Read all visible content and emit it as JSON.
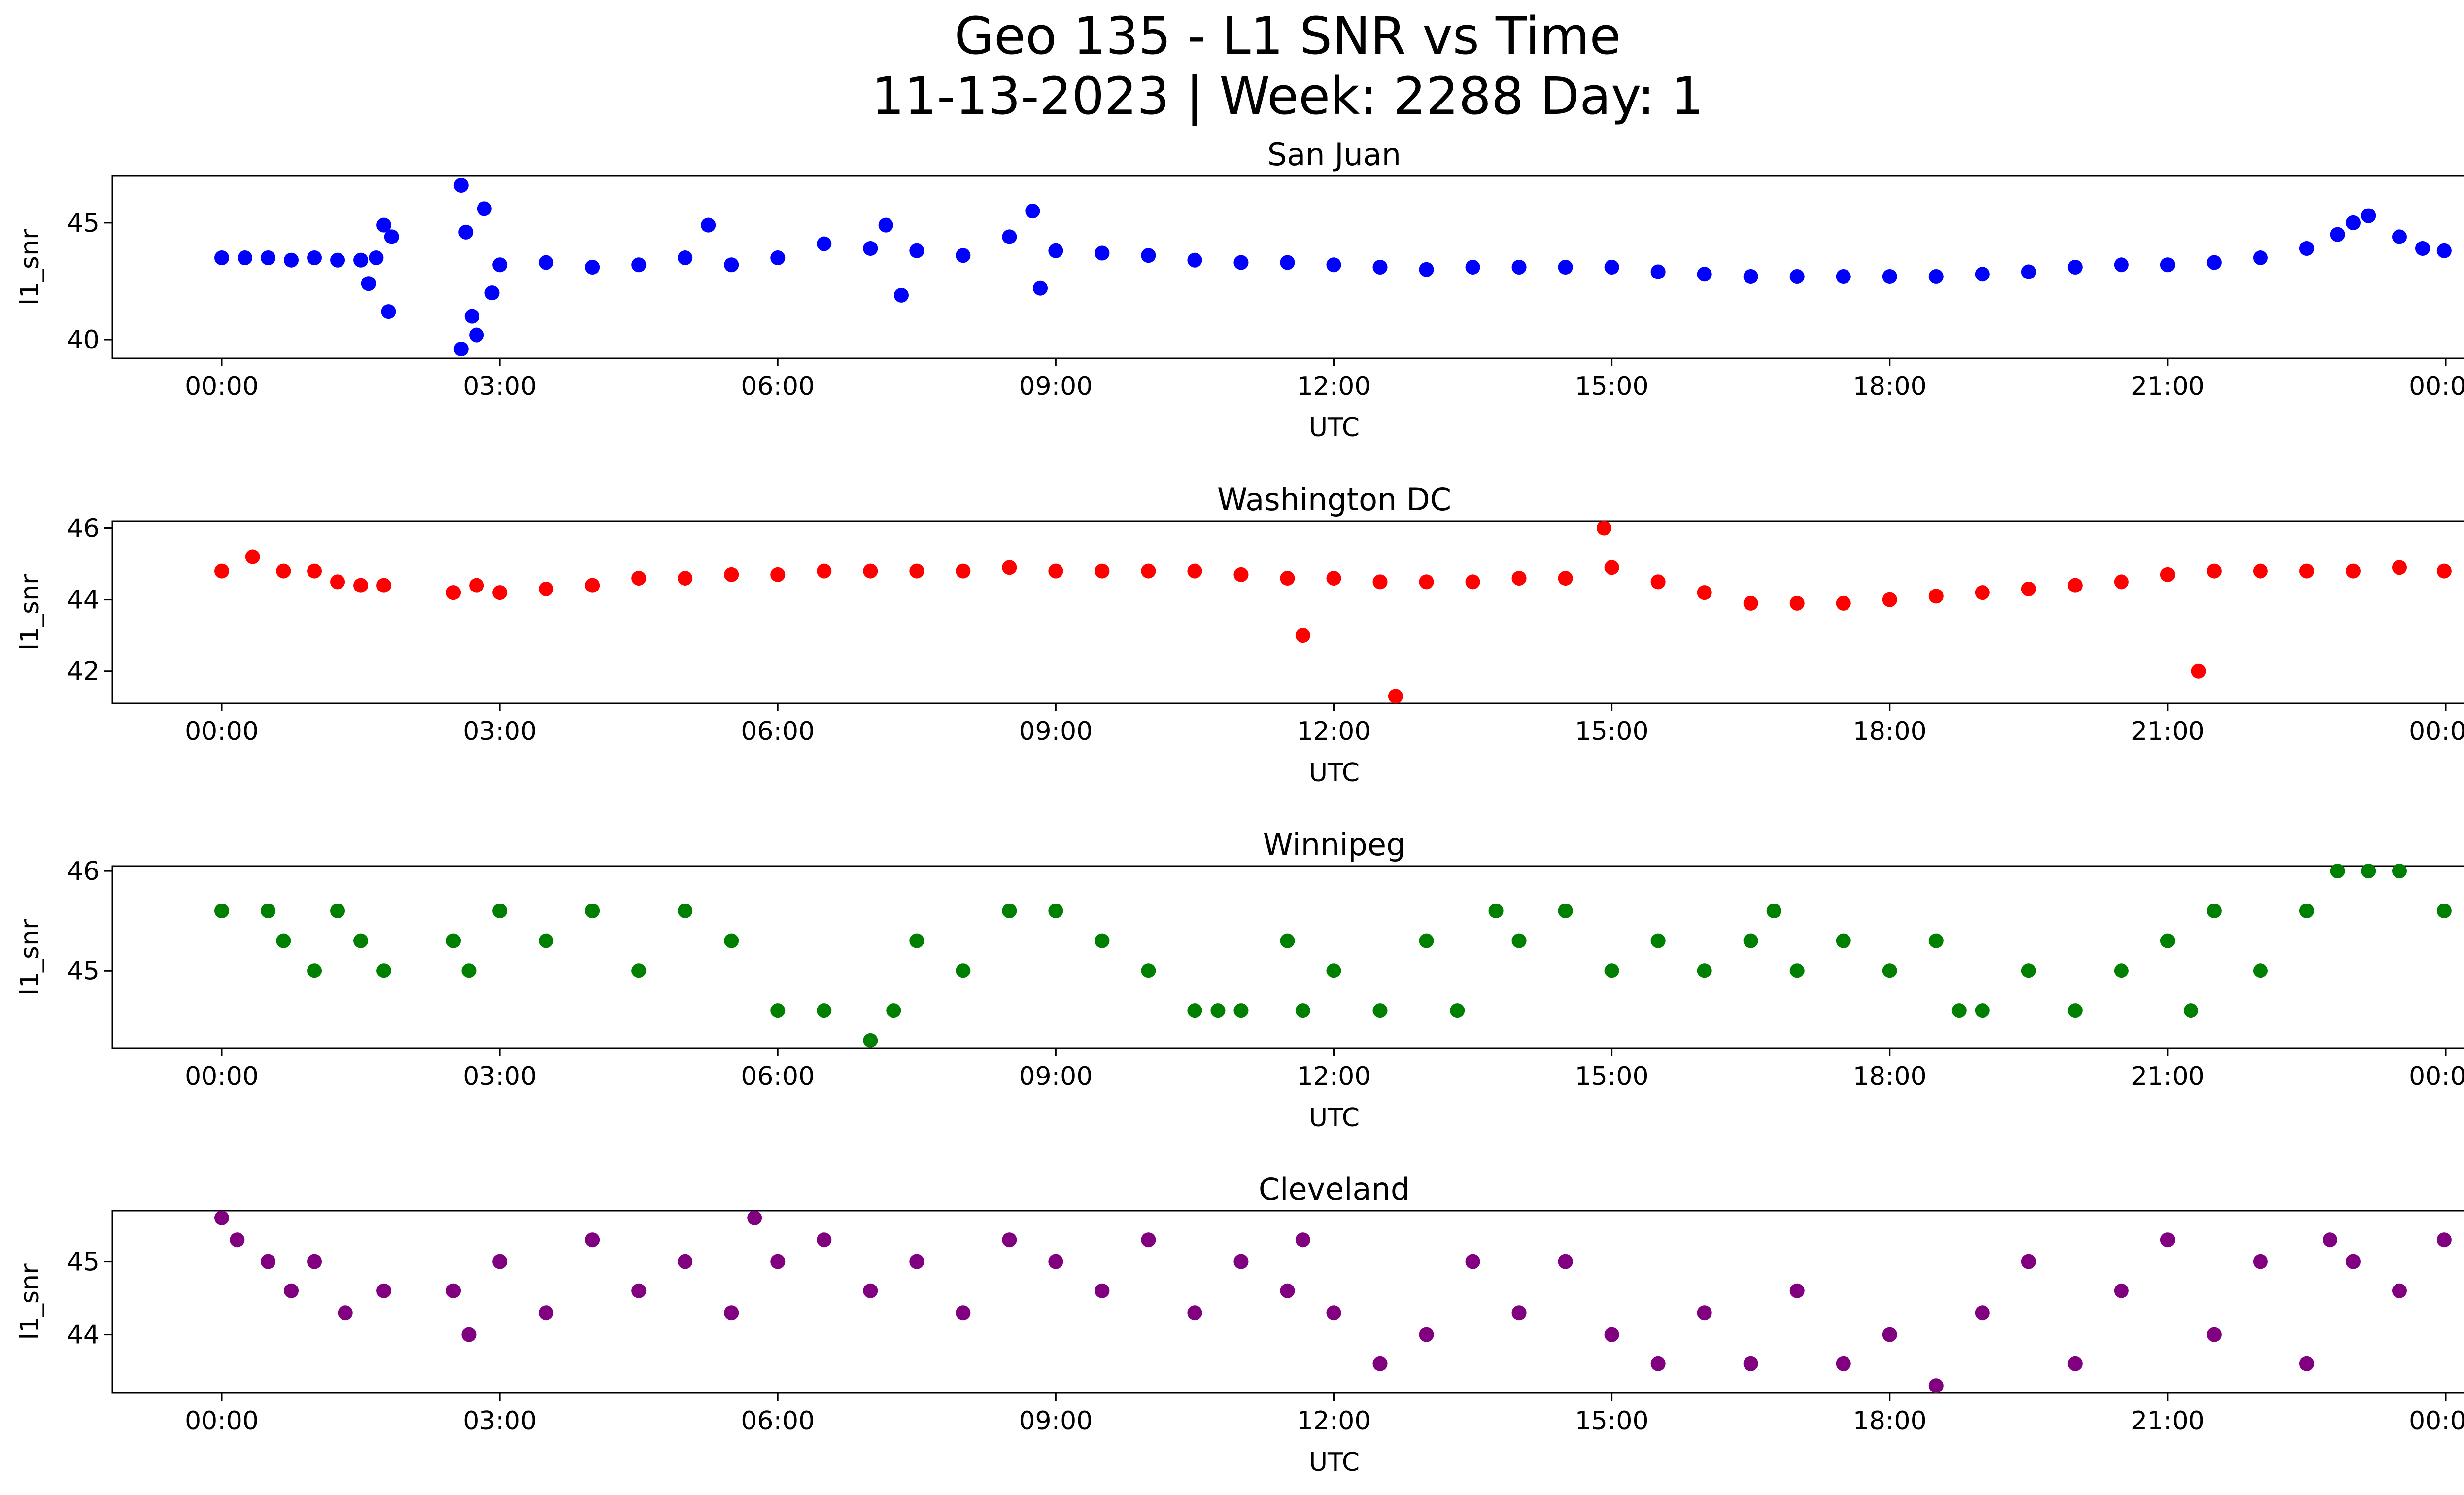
{
  "title": {
    "line1": "Geo 135 - L1 SNR vs Time",
    "line2": "11-13-2023 | Week: 2288 Day: 1"
  },
  "chart_data": [
    {
      "type": "scatter",
      "title": "San Juan",
      "xlabel": "UTC",
      "ylabel": "l1_snr",
      "color": "#0000ff",
      "xlim": [
        "2023-11-13T00:00",
        "2023-11-14T00:00"
      ],
      "ylim": [
        39.2,
        47.0
      ],
      "yticks": [
        40,
        45
      ],
      "xtick_labels": [
        "00:00",
        "03:00",
        "06:00",
        "09:00",
        "12:00",
        "15:00",
        "18:00",
        "21:00",
        "00:00"
      ],
      "points": [
        [
          "00:00",
          43.5
        ],
        [
          "00:15",
          43.5
        ],
        [
          "00:30",
          43.5
        ],
        [
          "00:45",
          43.4
        ],
        [
          "01:00",
          43.5
        ],
        [
          "01:15",
          43.4
        ],
        [
          "01:30",
          43.4
        ],
        [
          "01:40",
          43.5
        ],
        [
          "01:45",
          44.9
        ],
        [
          "01:48",
          41.2
        ],
        [
          "01:50",
          44.4
        ],
        [
          "01:35",
          42.4
        ],
        [
          "02:35",
          46.6
        ],
        [
          "02:35",
          39.6
        ],
        [
          "02:42",
          41.0
        ],
        [
          "02:45",
          40.2
        ],
        [
          "02:50",
          45.6
        ],
        [
          "02:38",
          44.6
        ],
        [
          "02:55",
          42.0
        ],
        [
          "03:00",
          43.2
        ],
        [
          "03:30",
          43.3
        ],
        [
          "04:00",
          43.1
        ],
        [
          "04:30",
          43.2
        ],
        [
          "05:00",
          43.5
        ],
        [
          "05:15",
          44.9
        ],
        [
          "05:30",
          43.2
        ],
        [
          "06:00",
          43.5
        ],
        [
          "06:30",
          44.1
        ],
        [
          "07:00",
          43.9
        ],
        [
          "07:10",
          44.9
        ],
        [
          "07:20",
          41.9
        ],
        [
          "07:30",
          43.8
        ],
        [
          "08:00",
          43.6
        ],
        [
          "08:30",
          44.4
        ],
        [
          "08:45",
          45.5
        ],
        [
          "08:50",
          42.2
        ],
        [
          "09:00",
          43.8
        ],
        [
          "09:30",
          43.7
        ],
        [
          "10:00",
          43.6
        ],
        [
          "10:30",
          43.4
        ],
        [
          "11:00",
          43.3
        ],
        [
          "11:30",
          43.3
        ],
        [
          "12:00",
          43.2
        ],
        [
          "12:30",
          43.1
        ],
        [
          "13:00",
          43.0
        ],
        [
          "13:30",
          43.1
        ],
        [
          "14:00",
          43.1
        ],
        [
          "14:30",
          43.1
        ],
        [
          "15:00",
          43.1
        ],
        [
          "15:30",
          42.9
        ],
        [
          "16:00",
          42.8
        ],
        [
          "16:30",
          42.7
        ],
        [
          "17:00",
          42.7
        ],
        [
          "17:30",
          42.7
        ],
        [
          "18:00",
          42.7
        ],
        [
          "18:30",
          42.7
        ],
        [
          "19:00",
          42.8
        ],
        [
          "19:30",
          42.9
        ],
        [
          "20:00",
          43.1
        ],
        [
          "20:30",
          43.2
        ],
        [
          "21:00",
          43.2
        ],
        [
          "21:30",
          43.3
        ],
        [
          "22:00",
          43.5
        ],
        [
          "22:30",
          43.9
        ],
        [
          "22:50",
          44.5
        ],
        [
          "23:00",
          45.0
        ],
        [
          "23:10",
          45.3
        ],
        [
          "23:30",
          44.4
        ],
        [
          "23:45",
          43.9
        ],
        [
          "23:59",
          43.8
        ]
      ]
    },
    {
      "type": "scatter",
      "title": "Washington DC",
      "xlabel": "UTC",
      "ylabel": "l1_snr",
      "color": "#ff0000",
      "xlim": [
        "2023-11-13T00:00",
        "2023-11-14T00:00"
      ],
      "ylim": [
        41.1,
        46.2
      ],
      "yticks": [
        42,
        44,
        46
      ],
      "xtick_labels": [
        "00:00",
        "03:00",
        "06:00",
        "09:00",
        "12:00",
        "15:00",
        "18:00",
        "21:00",
        "00:00"
      ],
      "points": [
        [
          "00:00",
          44.8
        ],
        [
          "00:20",
          45.2
        ],
        [
          "00:40",
          44.8
        ],
        [
          "01:00",
          44.8
        ],
        [
          "01:15",
          44.5
        ],
        [
          "01:30",
          44.4
        ],
        [
          "01:45",
          44.4
        ],
        [
          "02:30",
          44.2
        ],
        [
          "02:45",
          44.4
        ],
        [
          "03:00",
          44.2
        ],
        [
          "03:30",
          44.3
        ],
        [
          "04:00",
          44.4
        ],
        [
          "04:30",
          44.6
        ],
        [
          "05:00",
          44.6
        ],
        [
          "05:30",
          44.7
        ],
        [
          "06:00",
          44.7
        ],
        [
          "06:30",
          44.8
        ],
        [
          "07:00",
          44.8
        ],
        [
          "07:30",
          44.8
        ],
        [
          "08:00",
          44.8
        ],
        [
          "08:30",
          44.9
        ],
        [
          "09:00",
          44.8
        ],
        [
          "09:30",
          44.8
        ],
        [
          "10:00",
          44.8
        ],
        [
          "10:30",
          44.8
        ],
        [
          "11:00",
          44.7
        ],
        [
          "11:30",
          44.6
        ],
        [
          "11:40",
          43.0
        ],
        [
          "12:00",
          44.6
        ],
        [
          "12:30",
          44.5
        ],
        [
          "12:40",
          41.3
        ],
        [
          "13:00",
          44.5
        ],
        [
          "13:30",
          44.5
        ],
        [
          "14:00",
          44.6
        ],
        [
          "14:30",
          44.6
        ],
        [
          "14:55",
          46.0
        ],
        [
          "15:00",
          44.9
        ],
        [
          "15:30",
          44.5
        ],
        [
          "16:00",
          44.2
        ],
        [
          "16:30",
          43.9
        ],
        [
          "17:00",
          43.9
        ],
        [
          "17:30",
          43.9
        ],
        [
          "18:00",
          44.0
        ],
        [
          "18:30",
          44.1
        ],
        [
          "19:00",
          44.2
        ],
        [
          "19:30",
          44.3
        ],
        [
          "20:00",
          44.4
        ],
        [
          "20:30",
          44.5
        ],
        [
          "21:00",
          44.7
        ],
        [
          "21:20",
          42.0
        ],
        [
          "21:30",
          44.8
        ],
        [
          "22:00",
          44.8
        ],
        [
          "22:30",
          44.8
        ],
        [
          "23:00",
          44.8
        ],
        [
          "23:30",
          44.9
        ],
        [
          "23:59",
          44.8
        ]
      ]
    },
    {
      "type": "scatter",
      "title": "Winnipeg",
      "xlabel": "UTC",
      "ylabel": "l1_snr",
      "color": "#008000",
      "xlim": [
        "2023-11-13T00:00",
        "2023-11-14T00:00"
      ],
      "ylim": [
        44.22,
        46.05
      ],
      "yticks": [
        45,
        46
      ],
      "xtick_labels": [
        "00:00",
        "03:00",
        "06:00",
        "09:00",
        "12:00",
        "15:00",
        "18:00",
        "21:00",
        "00:00"
      ],
      "points": [
        [
          "00:00",
          45.6
        ],
        [
          "00:30",
          45.6
        ],
        [
          "00:40",
          45.3
        ],
        [
          "01:00",
          45.0
        ],
        [
          "01:15",
          45.6
        ],
        [
          "01:30",
          45.3
        ],
        [
          "01:45",
          45.0
        ],
        [
          "02:30",
          45.3
        ],
        [
          "02:40",
          45.0
        ],
        [
          "03:00",
          45.6
        ],
        [
          "03:30",
          45.3
        ],
        [
          "04:00",
          45.6
        ],
        [
          "04:30",
          45.0
        ],
        [
          "05:00",
          45.6
        ],
        [
          "05:30",
          45.3
        ],
        [
          "06:00",
          44.6
        ],
        [
          "06:30",
          44.6
        ],
        [
          "07:00",
          44.3
        ],
        [
          "07:15",
          44.6
        ],
        [
          "07:30",
          45.3
        ],
        [
          "08:00",
          45.0
        ],
        [
          "08:30",
          45.6
        ],
        [
          "09:00",
          45.6
        ],
        [
          "09:30",
          45.3
        ],
        [
          "10:00",
          45.0
        ],
        [
          "10:30",
          44.6
        ],
        [
          "10:45",
          44.6
        ],
        [
          "11:00",
          44.6
        ],
        [
          "11:30",
          45.3
        ],
        [
          "11:40",
          44.6
        ],
        [
          "12:00",
          45.0
        ],
        [
          "12:30",
          44.6
        ],
        [
          "13:00",
          45.3
        ],
        [
          "13:20",
          44.6
        ],
        [
          "13:45",
          45.6
        ],
        [
          "14:00",
          45.3
        ],
        [
          "14:30",
          45.6
        ],
        [
          "15:00",
          45.0
        ],
        [
          "15:30",
          45.3
        ],
        [
          "16:00",
          45.0
        ],
        [
          "16:30",
          45.3
        ],
        [
          "16:45",
          45.6
        ],
        [
          "17:00",
          45.0
        ],
        [
          "17:30",
          45.3
        ],
        [
          "18:00",
          45.0
        ],
        [
          "18:30",
          45.3
        ],
        [
          "18:45",
          44.6
        ],
        [
          "19:00",
          44.6
        ],
        [
          "19:30",
          45.0
        ],
        [
          "20:00",
          44.6
        ],
        [
          "20:30",
          45.0
        ],
        [
          "21:00",
          45.3
        ],
        [
          "21:15",
          44.6
        ],
        [
          "21:30",
          45.6
        ],
        [
          "22:00",
          45.0
        ],
        [
          "22:30",
          45.6
        ],
        [
          "22:50",
          46.0
        ],
        [
          "23:10",
          46.0
        ],
        [
          "23:30",
          46.0
        ],
        [
          "23:59",
          45.6
        ]
      ]
    },
    {
      "type": "scatter",
      "title": "Cleveland",
      "xlabel": "UTC",
      "ylabel": "l1_snr",
      "color": "#800080",
      "xlim": [
        "2023-11-13T00:00",
        "2023-11-14T00:00"
      ],
      "ylim": [
        43.2,
        45.7
      ],
      "yticks": [
        44,
        45
      ],
      "xtick_labels": [
        "00:00",
        "03:00",
        "06:00",
        "09:00",
        "12:00",
        "15:00",
        "18:00",
        "21:00",
        "00:00"
      ],
      "points": [
        [
          "00:00",
          45.6
        ],
        [
          "00:10",
          45.3
        ],
        [
          "00:30",
          45.0
        ],
        [
          "00:45",
          44.6
        ],
        [
          "01:00",
          45.0
        ],
        [
          "01:20",
          44.3
        ],
        [
          "01:45",
          44.6
        ],
        [
          "02:30",
          44.6
        ],
        [
          "02:40",
          44.0
        ],
        [
          "03:00",
          45.0
        ],
        [
          "03:30",
          44.3
        ],
        [
          "04:00",
          45.3
        ],
        [
          "04:30",
          44.6
        ],
        [
          "05:00",
          45.0
        ],
        [
          "05:30",
          44.3
        ],
        [
          "05:45",
          45.6
        ],
        [
          "06:00",
          45.0
        ],
        [
          "06:30",
          45.3
        ],
        [
          "07:00",
          44.6
        ],
        [
          "07:30",
          45.0
        ],
        [
          "08:00",
          44.3
        ],
        [
          "08:30",
          45.3
        ],
        [
          "09:00",
          45.0
        ],
        [
          "09:30",
          44.6
        ],
        [
          "10:00",
          45.3
        ],
        [
          "10:30",
          44.3
        ],
        [
          "11:00",
          45.0
        ],
        [
          "11:30",
          44.6
        ],
        [
          "11:40",
          45.3
        ],
        [
          "12:00",
          44.3
        ],
        [
          "12:30",
          43.6
        ],
        [
          "13:00",
          44.0
        ],
        [
          "13:30",
          45.0
        ],
        [
          "14:00",
          44.3
        ],
        [
          "14:30",
          45.0
        ],
        [
          "15:00",
          44.0
        ],
        [
          "15:30",
          43.6
        ],
        [
          "16:00",
          44.3
        ],
        [
          "16:30",
          43.6
        ],
        [
          "17:00",
          44.6
        ],
        [
          "17:30",
          43.6
        ],
        [
          "18:00",
          44.0
        ],
        [
          "18:30",
          43.3
        ],
        [
          "19:00",
          44.3
        ],
        [
          "19:30",
          45.0
        ],
        [
          "20:00",
          43.6
        ],
        [
          "20:30",
          44.6
        ],
        [
          "21:00",
          45.3
        ],
        [
          "21:30",
          44.0
        ],
        [
          "22:00",
          45.0
        ],
        [
          "22:30",
          43.6
        ],
        [
          "22:45",
          45.3
        ],
        [
          "23:00",
          45.0
        ],
        [
          "23:30",
          44.6
        ],
        [
          "23:59",
          45.3
        ]
      ]
    }
  ]
}
